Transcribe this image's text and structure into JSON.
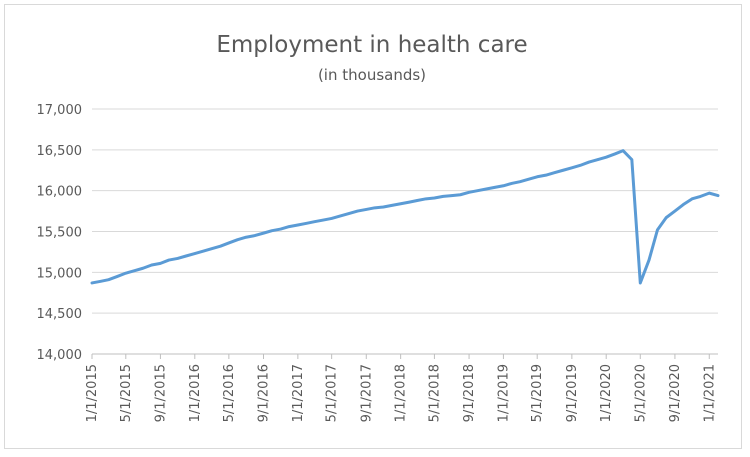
{
  "chart_data": {
    "type": "line",
    "title": "Employment in health care",
    "subtitle": "(in thousands)",
    "xlabel": "",
    "ylabel": "",
    "ylim": [
      14000,
      17000
    ],
    "y_ticks": [
      "14,000",
      "14,500",
      "15,000",
      "15,500",
      "16,000",
      "16,500",
      "17,000"
    ],
    "y_tick_values": [
      14000,
      14500,
      15000,
      15500,
      16000,
      16500,
      17000
    ],
    "x_ticks": [
      "1/1/2015",
      "5/1/2015",
      "9/1/2015",
      "1/1/2016",
      "5/1/2016",
      "9/1/2016",
      "1/1/2017",
      "5/1/2017",
      "9/1/2017",
      "1/1/2018",
      "5/1/2018",
      "9/1/2018",
      "1/1/2019",
      "5/1/2019",
      "9/1/2019",
      "1/1/2020",
      "5/1/2020",
      "9/1/2020",
      "1/1/2021"
    ],
    "grid": true,
    "legend": "none",
    "line_color": "#5b9bd5",
    "series": [
      {
        "x": [
          "1/1/2015",
          "2/1/2015",
          "3/1/2015",
          "4/1/2015",
          "5/1/2015",
          "6/1/2015",
          "7/1/2015",
          "8/1/2015",
          "9/1/2015",
          "10/1/2015",
          "11/1/2015",
          "12/1/2015",
          "1/1/2016",
          "2/1/2016",
          "3/1/2016",
          "4/1/2016",
          "5/1/2016",
          "6/1/2016",
          "7/1/2016",
          "8/1/2016",
          "9/1/2016",
          "10/1/2016",
          "11/1/2016",
          "12/1/2016",
          "1/1/2017",
          "2/1/2017",
          "3/1/2017",
          "4/1/2017",
          "5/1/2017",
          "6/1/2017",
          "7/1/2017",
          "8/1/2017",
          "9/1/2017",
          "10/1/2017",
          "11/1/2017",
          "12/1/2017",
          "1/1/2018",
          "2/1/2018",
          "3/1/2018",
          "4/1/2018",
          "5/1/2018",
          "6/1/2018",
          "7/1/2018",
          "8/1/2018",
          "9/1/2018",
          "10/1/2018",
          "11/1/2018",
          "12/1/2018",
          "1/1/2019",
          "2/1/2019",
          "3/1/2019",
          "4/1/2019",
          "5/1/2019",
          "6/1/2019",
          "7/1/2019",
          "8/1/2019",
          "9/1/2019",
          "10/1/2019",
          "11/1/2019",
          "12/1/2019",
          "1/1/2020",
          "2/1/2020",
          "3/1/2020",
          "4/1/2020",
          "5/1/2020",
          "6/1/2020",
          "7/1/2020",
          "8/1/2020",
          "9/1/2020",
          "10/1/2020",
          "11/1/2020",
          "12/1/2020",
          "1/1/2021",
          "2/1/2021"
        ],
        "values": [
          14870,
          14890,
          14910,
          14950,
          14990,
          15020,
          15050,
          15090,
          15110,
          15150,
          15170,
          15200,
          15230,
          15260,
          15290,
          15320,
          15360,
          15400,
          15430,
          15450,
          15480,
          15510,
          15530,
          15560,
          15580,
          15600,
          15620,
          15640,
          15660,
          15690,
          15720,
          15750,
          15770,
          15790,
          15800,
          15820,
          15840,
          15860,
          15880,
          15900,
          15910,
          15930,
          15940,
          15950,
          15980,
          16000,
          16020,
          16040,
          16060,
          16090,
          16110,
          16140,
          16170,
          16190,
          16220,
          16250,
          16280,
          16310,
          16350,
          16380,
          16410,
          16450,
          16490,
          16380,
          14870,
          15150,
          15520,
          15670,
          15750,
          15830,
          15900,
          15930,
          15970,
          15940
        ]
      }
    ]
  }
}
